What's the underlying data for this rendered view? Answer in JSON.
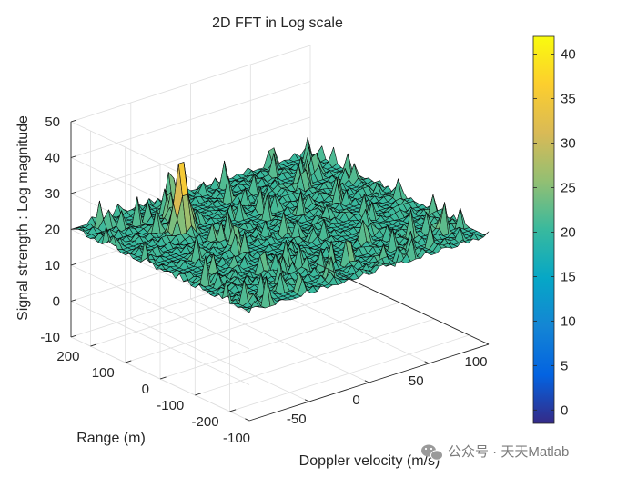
{
  "chart_data": {
    "type": "surface",
    "title": "2D FFT in Log scale",
    "xlabel": "Doppler velocity (m/s)",
    "ylabel": "Range (m)",
    "zlabel": "Signal strength : Log magnitude",
    "x_ticks": [
      "-100",
      "-50",
      "0",
      "50",
      "100"
    ],
    "y_ticks": [
      "-200",
      "-100",
      "0",
      "100",
      "200"
    ],
    "z_ticks": [
      "-10",
      "0",
      "10",
      "20",
      "30",
      "40",
      "50"
    ],
    "xlim": [
      -100,
      100
    ],
    "ylim": [
      -256,
      256
    ],
    "zlim": [
      -10,
      50
    ],
    "grid": true,
    "colormap": "parula",
    "colorbar": {
      "ticks": [
        "0",
        "5",
        "10",
        "15",
        "20",
        "25",
        "30",
        "35",
        "40"
      ],
      "range": [
        -1.5,
        42
      ],
      "location": "right",
      "colors": [
        "#352a87",
        "#0363e1",
        "#1485d4",
        "#06a7c6",
        "#38b99e",
        "#92bf73",
        "#d9ba56",
        "#fcce2e",
        "#f9fb0e"
      ]
    },
    "surface": {
      "noise_floor_db": 20,
      "noise_min_db": -10,
      "peak": {
        "doppler": -50,
        "range": 110,
        "value_db": 42
      }
    }
  },
  "watermark": {
    "text": "公众号 · 天天Matlab",
    "icon": "wechat-icon"
  }
}
